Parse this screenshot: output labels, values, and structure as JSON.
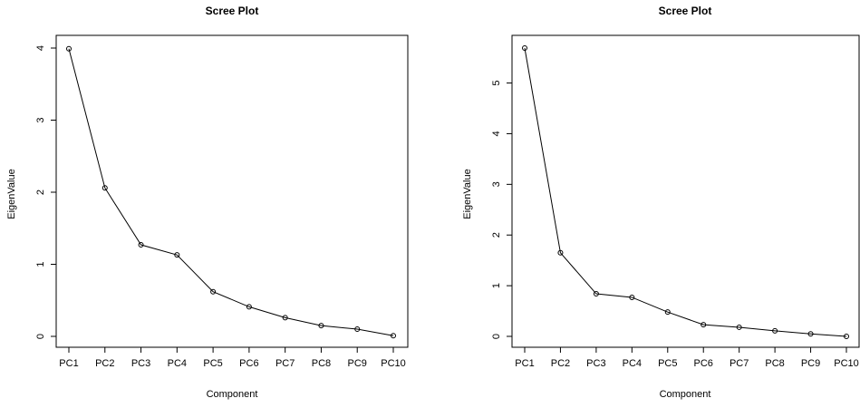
{
  "chart_data": [
    {
      "type": "line",
      "title": "Scree Plot",
      "xlabel": "Component",
      "ylabel": "EigenValue",
      "categories": [
        "PC1",
        "PC2",
        "PC3",
        "PC4",
        "PC5",
        "PC6",
        "PC7",
        "PC8",
        "PC9",
        "PC10"
      ],
      "values": [
        3.99,
        2.06,
        1.27,
        1.13,
        0.62,
        0.41,
        0.26,
        0.15,
        0.1,
        0.01
      ],
      "yticks": [
        0,
        1,
        2,
        3,
        4
      ],
      "ylim": [
        0,
        4
      ],
      "grid": false,
      "markers": "open-circle",
      "colors": {
        "line": "#000000",
        "marker": "#000000"
      }
    },
    {
      "type": "line",
      "title": "Scree Plot",
      "xlabel": "Component",
      "ylabel": "EigenValue",
      "categories": [
        "PC1",
        "PC2",
        "PC3",
        "PC4",
        "PC5",
        "PC6",
        "PC7",
        "PC8",
        "PC9",
        "PC10"
      ],
      "values": [
        5.69,
        1.65,
        0.84,
        0.77,
        0.48,
        0.23,
        0.18,
        0.11,
        0.05,
        0.0
      ],
      "yticks": [
        0,
        1,
        2,
        3,
        4,
        5
      ],
      "ylim": [
        0,
        5.69
      ],
      "grid": false,
      "markers": "open-circle",
      "colors": {
        "line": "#000000",
        "marker": "#000000"
      }
    }
  ]
}
